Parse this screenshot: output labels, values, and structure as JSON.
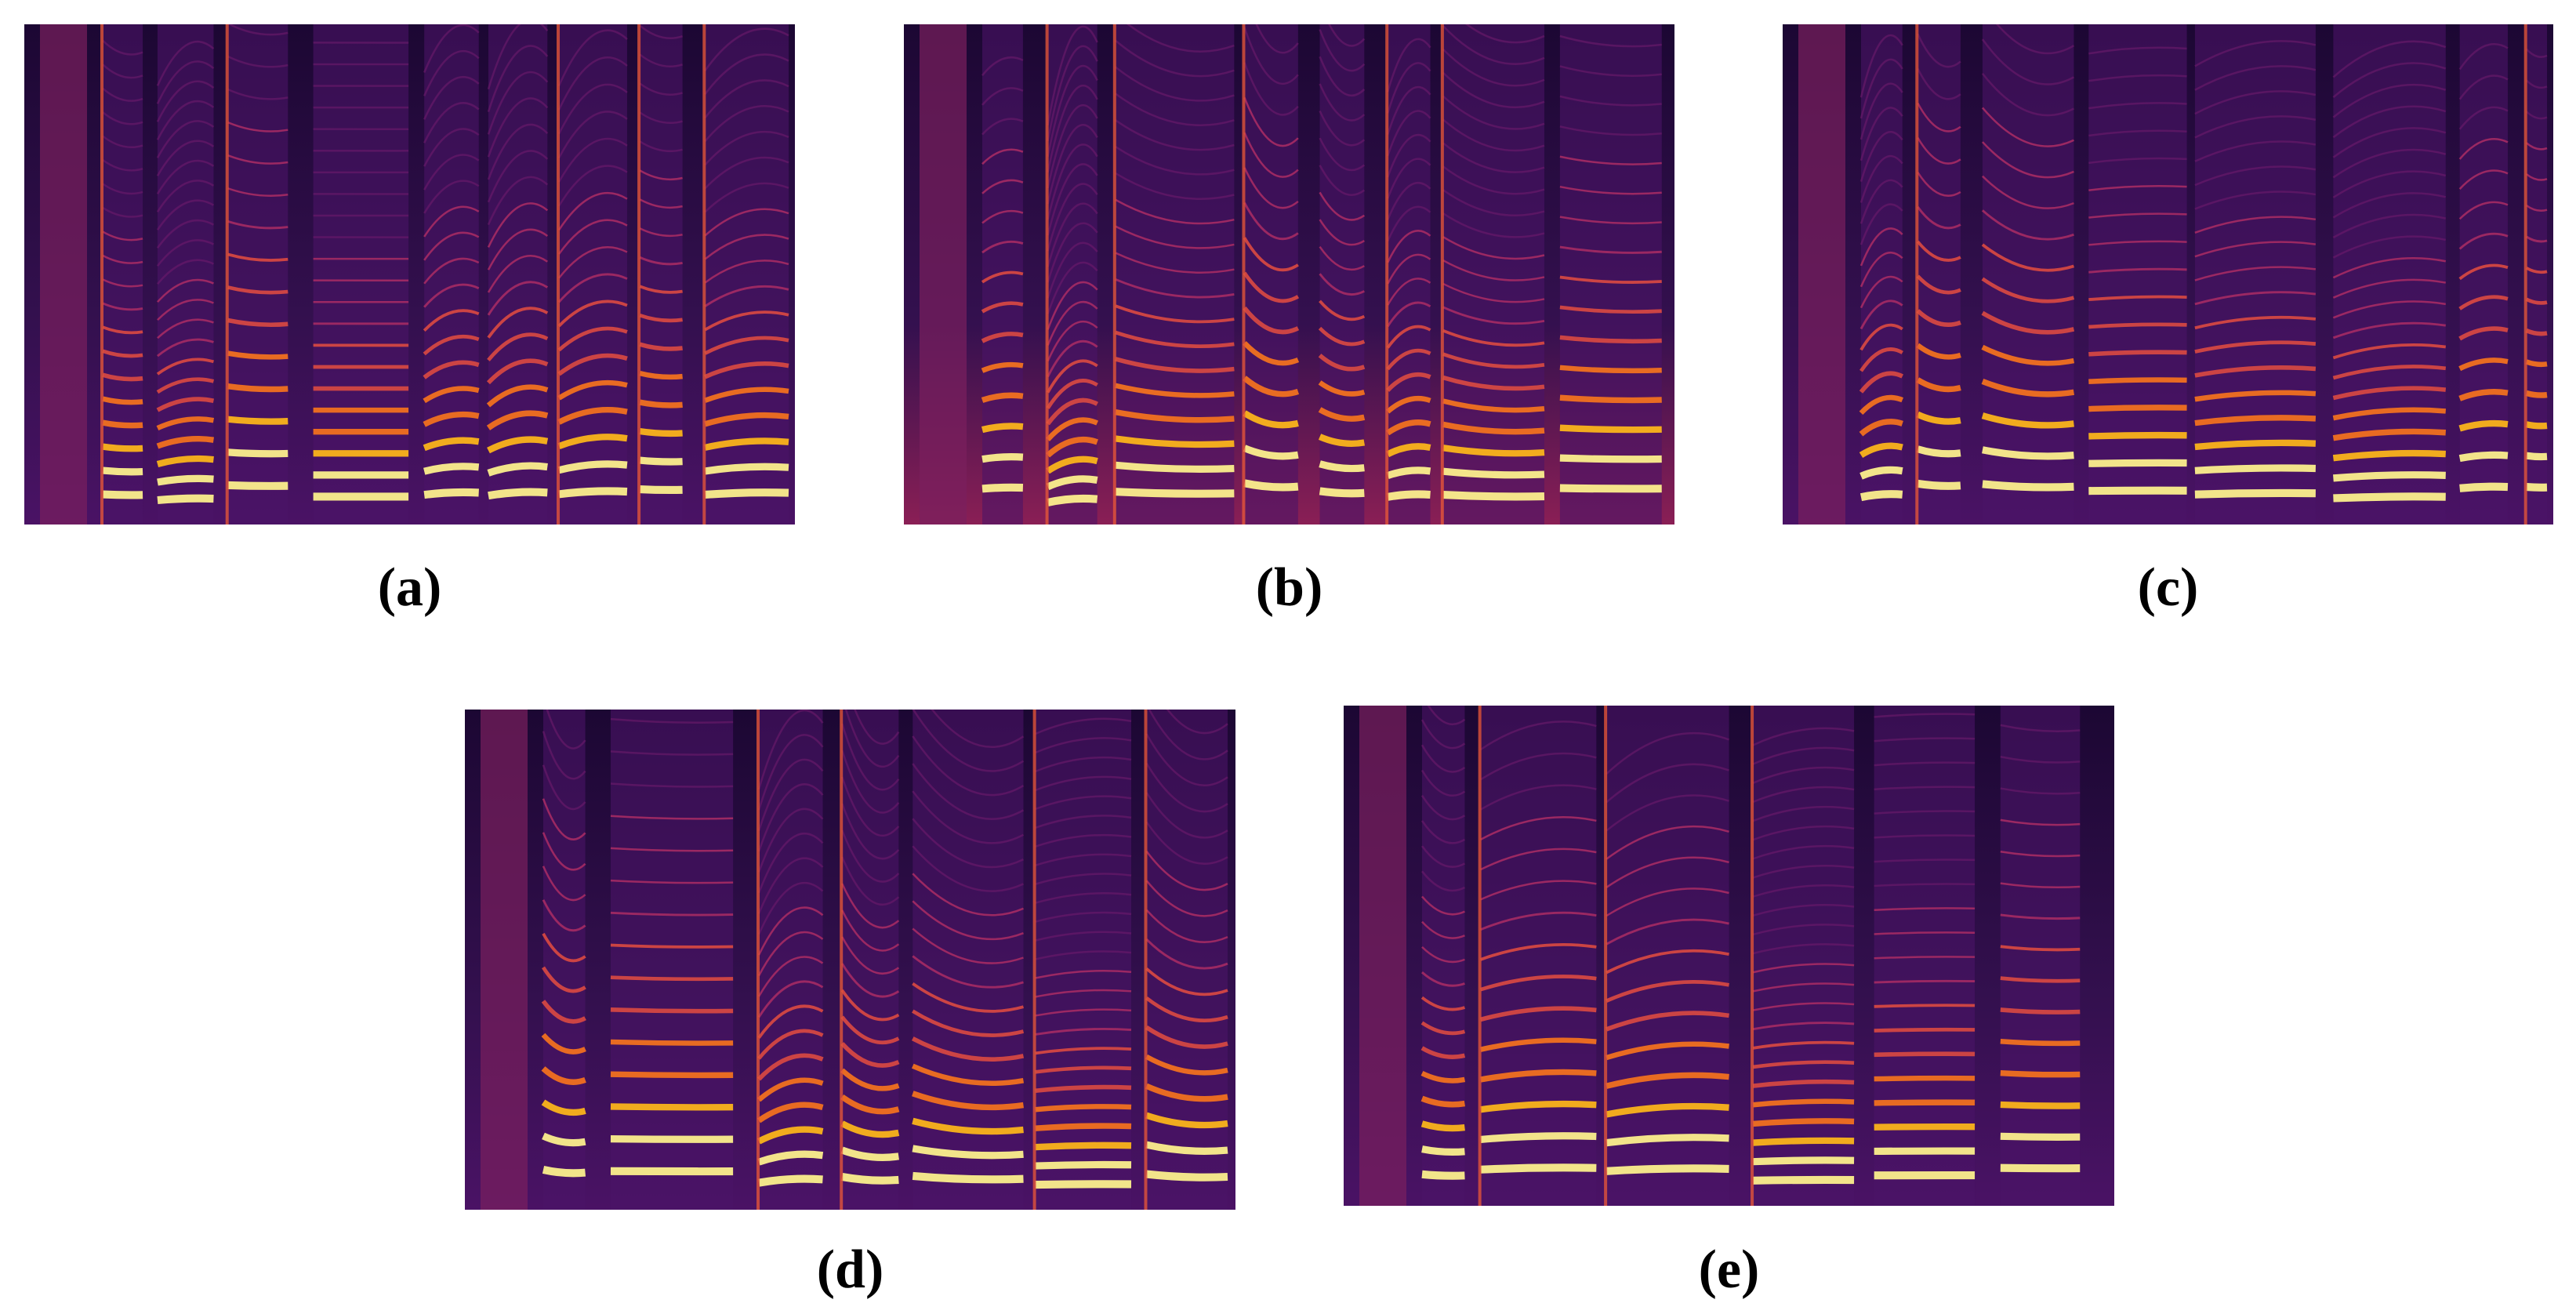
{
  "figure": {
    "panels": [
      {
        "label": "(a)"
      },
      {
        "label": "(b)"
      },
      {
        "label": "(c)"
      },
      {
        "label": "(d)"
      },
      {
        "label": "(e)"
      }
    ]
  }
}
